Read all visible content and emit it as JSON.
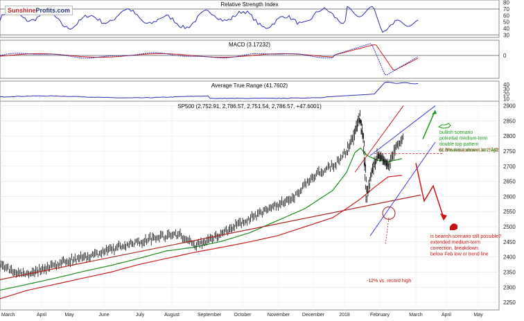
{
  "brand": {
    "part1": "Sunshine",
    "part2": "Profits.com"
  },
  "panels": {
    "rsi": {
      "title": "Relative Strength Index",
      "ticks": [
        "80",
        "70",
        "60",
        "50",
        "40",
        "30"
      ],
      "levels": [
        70,
        30
      ],
      "range": [
        26,
        84
      ]
    },
    "macd": {
      "title": "MACD (3.17232)",
      "ticks": [
        "0"
      ],
      "range": [
        -45,
        30
      ]
    },
    "atr": {
      "title": "Average True Range (41.7602)",
      "ticks": [
        "40",
        "30",
        "20",
        "10"
      ],
      "range": [
        5,
        47
      ]
    }
  },
  "chart_data": {
    "type": "line",
    "title": "SP500 (2,752.91, 2,786.57, 2,751.54, 2,786.57, +47.6001)",
    "x_labels": [
      "March",
      "April",
      "May",
      "June",
      "July",
      "August",
      "September",
      "October",
      "November",
      "December",
      "2018",
      "February",
      "March",
      "April",
      "May"
    ],
    "y_ticks": [
      "2900",
      "2850",
      "2800",
      "2750",
      "2700",
      "2650",
      "2600",
      "2550",
      "2500",
      "2450",
      "2400",
      "2350",
      "2300",
      "2250"
    ],
    "ylim": [
      2225,
      2915
    ],
    "grid": true,
    "colors": {
      "price": "#000000",
      "ma_green": "#1a8a1a",
      "ma_red": "#cc1a1a",
      "oscillator": "#2d2db0",
      "channel": "#3a3adf",
      "bull": "#1a9a1a",
      "bear": "#cc1111"
    },
    "series": [
      {
        "x": [
          0,
          20,
          40,
          60,
          80,
          100,
          120,
          140,
          160,
          180,
          200,
          220,
          240,
          260,
          280,
          300,
          320,
          340,
          360,
          380,
          400,
          420,
          440,
          460,
          480,
          500,
          510,
          518,
          524,
          528,
          536,
          544,
          552,
          560,
          570,
          580
        ],
        "values": [
          2370,
          2350,
          2345,
          2360,
          2375,
          2390,
          2400,
          2410,
          2425,
          2440,
          2448,
          2465,
          2470,
          2474,
          2438,
          2455,
          2480,
          2505,
          2525,
          2552,
          2573,
          2592,
          2640,
          2680,
          2700,
          2750,
          2800,
          2870,
          2780,
          2600,
          2680,
          2740,
          2720,
          2700,
          2760,
          2786
        ]
      },
      {
        "x": [
          0,
          40,
          80,
          120,
          160,
          200,
          240,
          280,
          320,
          360,
          400,
          440,
          480,
          500,
          512,
          520,
          530,
          545,
          560,
          570,
          580
        ],
        "values": [
          2290,
          2310,
          2330,
          2352,
          2372,
          2395,
          2420,
          2432,
          2452,
          2480,
          2520,
          2560,
          2620,
          2680,
          2745,
          2760,
          2735,
          2720,
          2715,
          2720,
          2725
        ]
      },
      {
        "x": [
          0,
          40,
          80,
          120,
          160,
          200,
          240,
          280,
          320,
          360,
          400,
          440,
          480,
          500,
          520,
          540,
          560,
          580
        ],
        "values": [
          2262,
          2290,
          2310,
          2330,
          2350,
          2375,
          2395,
          2415,
          2432,
          2450,
          2470,
          2500,
          2530,
          2560,
          2592,
          2630,
          2665,
          2670
        ]
      }
    ],
    "annotations": {
      "retracement": "61.8% retracement at 2,742",
      "bullish": [
        "bullish scenario",
        "potential medium-term",
        "double top pattern",
        "or breakout above Jan high"
      ],
      "bearish": [
        "is bearish scenario still possible?",
        "extended medium-term",
        "correction, breakdown",
        "below Feb low or trend line"
      ],
      "decline": "-12% vs. record high"
    }
  }
}
